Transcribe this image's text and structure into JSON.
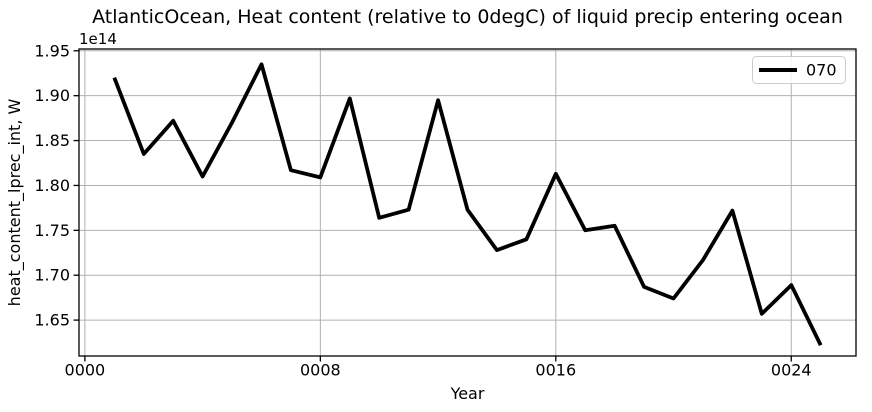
{
  "chart_data": {
    "type": "line",
    "title": "AtlanticOcean, Heat content (relative to 0degC) of liquid precip entering ocean",
    "xlabel": "Year",
    "ylabel": "heat_content_lprec_int, W",
    "offset_text": "1e14",
    "x": [
      1,
      2,
      3,
      4,
      5,
      6,
      7,
      8,
      9,
      10,
      11,
      12,
      13,
      14,
      15,
      16,
      17,
      18,
      19,
      20,
      21,
      22,
      23,
      24,
      25
    ],
    "series": [
      {
        "name": "070",
        "values": [
          1.92,
          1.835,
          1.872,
          1.81,
          1.87,
          1.935,
          1.817,
          1.809,
          1.897,
          1.764,
          1.773,
          1.895,
          1.773,
          1.728,
          1.74,
          1.813,
          1.75,
          1.755,
          1.687,
          1.674,
          1.717,
          1.772,
          1.657,
          1.689,
          1.622
        ]
      }
    ],
    "value_unit_multiplier": "1e14",
    "value_unit": "W",
    "xlim": [
      -0.2,
      26.2
    ],
    "ylim": [
      1.61,
      1.952
    ],
    "x_ticks": {
      "values": [
        0,
        8,
        16,
        24
      ],
      "labels": [
        "0000",
        "0008",
        "0016",
        "0024"
      ]
    },
    "y_ticks": {
      "values": [
        1.65,
        1.7,
        1.75,
        1.8,
        1.85,
        1.9,
        1.95
      ],
      "labels": [
        "1.65",
        "1.70",
        "1.75",
        "1.80",
        "1.85",
        "1.90",
        "1.95"
      ]
    },
    "grid": true,
    "legend": {
      "position": "upper right",
      "entries": [
        {
          "label": "070",
          "color": "#000000"
        }
      ]
    },
    "colors": {
      "line": "#000000",
      "grid": "#b0b0b0",
      "spine": "#000000",
      "background": "#ffffff",
      "legend_border": "#cccccc",
      "text": "#000000"
    }
  }
}
